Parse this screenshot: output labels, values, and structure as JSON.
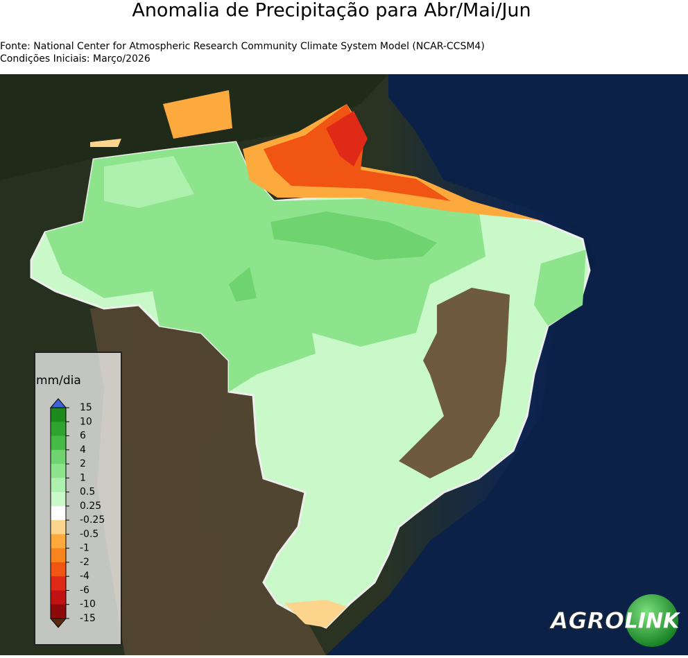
{
  "header": {
    "title": "Anomalia de Precipitação para Abr/Mai/Jun",
    "source": "Fonte: National Center for Atmospheric Research Community Climate System Model (NCAR-CCSM4)",
    "initial_conditions": "Condições Iniciais: Março/2026"
  },
  "colorbar": {
    "unit": "mm/dia",
    "ticks": [
      15,
      10,
      6,
      4,
      2,
      1,
      0.5,
      0.25,
      -0.25,
      -0.5,
      -1,
      -2,
      -4,
      -6,
      -10,
      -15
    ],
    "colors": [
      "#1d8a1d",
      "#2ea42e",
      "#45bb45",
      "#6fd36f",
      "#8de48d",
      "#aef0ae",
      "#c9f8c9",
      "#ffffff",
      "#fdd48c",
      "#fca93e",
      "#f7841c",
      "#f05514",
      "#e02a18",
      "#c01212",
      "#8e0a0a"
    ],
    "over_color": "#3d62d6",
    "under_color": "#5b2a0c"
  },
  "logo": {
    "left": "AGRO",
    "right": "LINK"
  }
}
